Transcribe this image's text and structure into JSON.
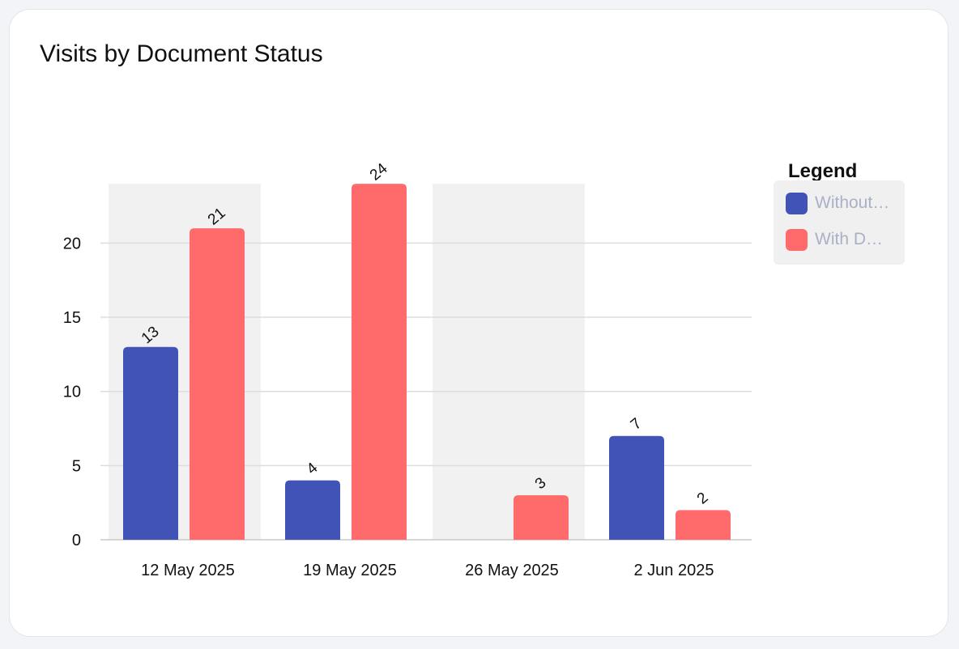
{
  "card": {
    "title": "Visits by Document Status"
  },
  "legend": {
    "title": "Legend",
    "items": [
      {
        "label": "Without…",
        "color": "#4153b7"
      },
      {
        "label": "With D…",
        "color": "#ff6a6a"
      }
    ]
  },
  "chart_data": {
    "type": "bar",
    "title": "Visits by Document Status",
    "categories": [
      "12 May 2025",
      "19 May 2025",
      "26 May 2025",
      "2 Jun 2025"
    ],
    "series": [
      {
        "name": "Without…",
        "values": [
          13,
          4,
          0,
          7
        ],
        "color": "#4153b7"
      },
      {
        "name": "With D…",
        "values": [
          21,
          24,
          3,
          2
        ],
        "color": "#ff6a6a"
      }
    ],
    "yticks": [
      0,
      5,
      10,
      15,
      20
    ],
    "ylim": [
      0,
      24
    ],
    "grid": true,
    "highlighted_categories": [
      "12 May 2025",
      "26 May 2025"
    ],
    "legend_position": "right"
  }
}
